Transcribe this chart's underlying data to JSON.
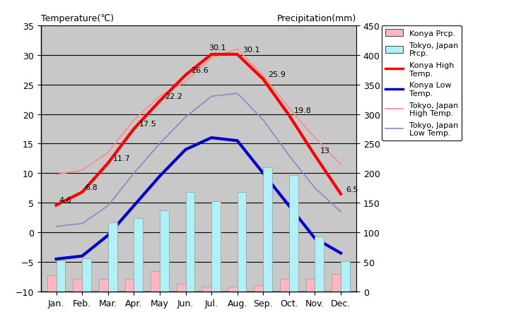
{
  "months": [
    "Jan.",
    "Feb.",
    "Mar.",
    "Apr.",
    "May",
    "Jun.",
    "Jul.",
    "Aug.",
    "Sep.",
    "Oct.",
    "Nov.",
    "Dec."
  ],
  "konya_high": [
    4.6,
    6.8,
    11.7,
    17.5,
    22.2,
    26.6,
    30.1,
    30.1,
    25.9,
    19.8,
    13.0,
    6.5
  ],
  "konya_low": [
    -4.5,
    -4.0,
    -0.5,
    4.5,
    9.5,
    14.0,
    16.0,
    15.5,
    10.0,
    4.5,
    -1.0,
    -3.5
  ],
  "tokyo_high": [
    9.8,
    10.5,
    13.5,
    19.0,
    23.0,
    25.5,
    29.5,
    31.0,
    26.5,
    21.0,
    16.0,
    11.5
  ],
  "tokyo_low": [
    1.0,
    1.5,
    4.5,
    10.0,
    15.0,
    19.5,
    23.0,
    23.5,
    19.0,
    13.0,
    7.5,
    3.5
  ],
  "konya_prcp": [
    27,
    22,
    22,
    22,
    35,
    13,
    8,
    8,
    11,
    22,
    22,
    30
  ],
  "tokyo_prcp": [
    52,
    56,
    117,
    124,
    137,
    168,
    153,
    168,
    210,
    197,
    93,
    51
  ],
  "konya_high_labels": [
    "4.6",
    "6.8",
    "11.7",
    "17.5",
    "22.2",
    "26.6",
    "30.1",
    "30.1",
    "25.9",
    "19.8",
    "13",
    "6.5"
  ],
  "title_left": "Temperature(℃)",
  "title_right": "Precipitation(mm)",
  "bg_color": "#c8c8c8",
  "konya_high_color": "#ff0000",
  "konya_low_color": "#0000cc",
  "tokyo_high_color": "#ff8888",
  "tokyo_low_color": "#8888cc",
  "konya_prcp_color": "#ffb6c1",
  "tokyo_prcp_color": "#b0f0f8",
  "ylim_temp": [
    -10,
    35
  ],
  "ylim_prcp": [
    0,
    450
  ],
  "yticks_temp": [
    -10,
    -5,
    0,
    5,
    10,
    15,
    20,
    25,
    30,
    35
  ],
  "yticks_prcp": [
    0,
    50,
    100,
    150,
    200,
    250,
    300,
    350,
    400,
    450
  ],
  "figsize": [
    7.2,
    4.6
  ],
  "dpi": 100
}
